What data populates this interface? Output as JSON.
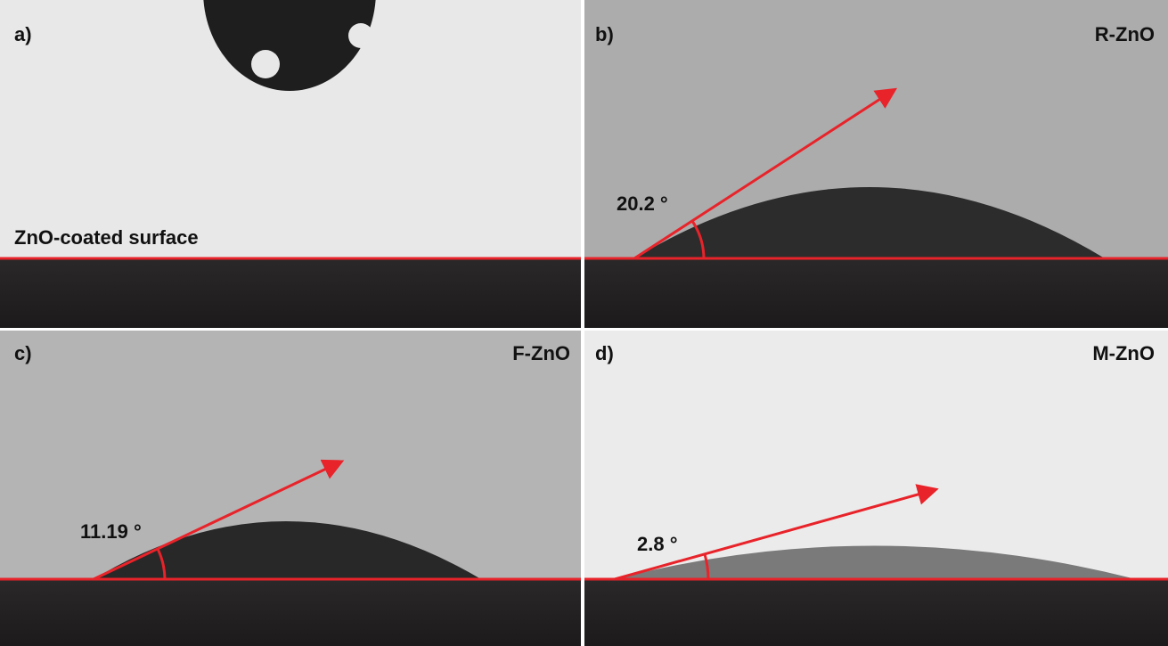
{
  "panels": [
    {
      "letter": "a)",
      "caption": "ZnO-coated surface"
    },
    {
      "letter": "b)",
      "sample": "R-ZnO",
      "angle": "20.2 °"
    },
    {
      "letter": "c)",
      "sample": "F-ZnO",
      "angle": "11.19 °"
    },
    {
      "letter": "d)",
      "sample": "M-ZnO",
      "angle": "2.8 °"
    }
  ]
}
